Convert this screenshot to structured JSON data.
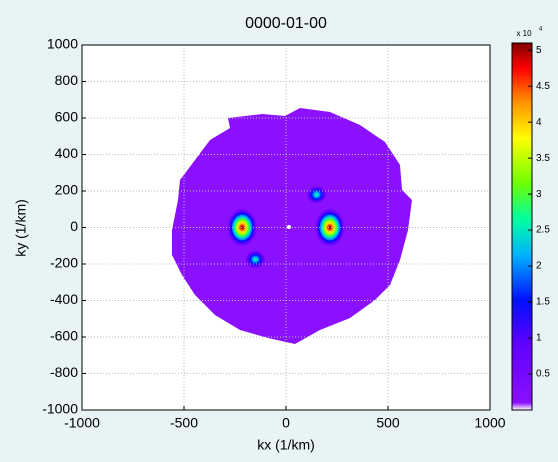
{
  "chart_data": {
    "type": "heatmap",
    "title": "0000-01-00",
    "x_label": "kx (1/km)",
    "y_label": "ky (1/km)",
    "xlim": [
      -1000,
      1000
    ],
    "xticks": [
      -1000,
      -500,
      0,
      500,
      1000
    ],
    "ylim": [
      -1000,
      1000
    ],
    "yticks": [
      -1000,
      -800,
      -600,
      -400,
      -200,
      0,
      200,
      400,
      600,
      800,
      1000
    ],
    "grid": true,
    "x": [
      -215,
      215,
      150,
      -150
    ],
    "y": [
      0,
      0,
      180,
      -175
    ],
    "values": [
      50000,
      50000,
      25000,
      25000
    ],
    "clim": [
      0,
      51000
    ],
    "colorbar_ticks": [
      {
        "value": 5000,
        "label": "0.5"
      },
      {
        "value": 10000,
        "label": "1"
      },
      {
        "value": 15000,
        "label": "1.5"
      },
      {
        "value": 20000,
        "label": "2"
      },
      {
        "value": 25000,
        "label": "2.5"
      },
      {
        "value": 30000,
        "label": "3"
      },
      {
        "value": 35000,
        "label": "3.5"
      },
      {
        "value": 40000,
        "label": "4"
      },
      {
        "value": 45000,
        "label": "4.5"
      },
      {
        "value": 50000,
        "label": "5"
      }
    ],
    "colorbar_multiplier": "x 10",
    "colorbar_exponent": "4"
  }
}
